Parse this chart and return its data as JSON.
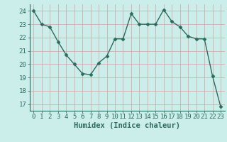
{
  "x": [
    0,
    1,
    2,
    3,
    4,
    5,
    6,
    7,
    8,
    9,
    10,
    11,
    12,
    13,
    14,
    15,
    16,
    17,
    18,
    19,
    20,
    21,
    22,
    23
  ],
  "y": [
    24.0,
    23.0,
    22.8,
    21.7,
    20.7,
    20.0,
    19.3,
    19.2,
    20.1,
    20.6,
    21.9,
    21.9,
    23.8,
    23.0,
    23.0,
    23.0,
    24.1,
    23.2,
    22.8,
    22.1,
    21.9,
    21.9,
    19.1,
    16.8
  ],
  "line_color": "#2d6b5e",
  "marker": "D",
  "marker_size": 2.5,
  "bg_color": "#cbeeeb",
  "grid_color": "#d4a0a0",
  "xlabel": "Humidex (Indice chaleur)",
  "ylim": [
    16.5,
    24.5
  ],
  "xlim": [
    -0.5,
    23.5
  ],
  "yticks": [
    17,
    18,
    19,
    20,
    21,
    22,
    23,
    24
  ],
  "xticks": [
    0,
    1,
    2,
    3,
    4,
    5,
    6,
    7,
    8,
    9,
    10,
    11,
    12,
    13,
    14,
    15,
    16,
    17,
    18,
    19,
    20,
    21,
    22,
    23
  ],
  "tick_color": "#2d6b5e",
  "axis_color": "#2d6b5e",
  "label_fontsize": 7.5,
  "tick_fontsize": 6.5
}
